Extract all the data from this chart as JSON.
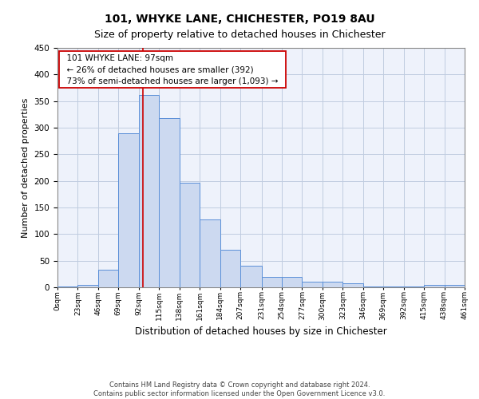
{
  "title": "101, WHYKE LANE, CHICHESTER, PO19 8AU",
  "subtitle": "Size of property relative to detached houses in Chichester",
  "xlabel": "Distribution of detached houses by size in Chichester",
  "ylabel": "Number of detached properties",
  "footer_line1": "Contains HM Land Registry data © Crown copyright and database right 2024.",
  "footer_line2": "Contains public sector information licensed under the Open Government Licence v3.0.",
  "annotation_line1": "101 WHYKE LANE: 97sqm",
  "annotation_line2": "← 26% of detached houses are smaller (392)",
  "annotation_line3": "73% of semi-detached houses are larger (1,093) →",
  "bar_values": [
    2,
    5,
    33,
    290,
    362,
    318,
    197,
    127,
    70,
    40,
    20,
    20,
    10,
    10,
    7,
    2,
    2,
    2,
    5,
    4
  ],
  "bin_edges": [
    0,
    23,
    46,
    69,
    92,
    115,
    138,
    161,
    184,
    207,
    231,
    254,
    277,
    300,
    323,
    346,
    369,
    392,
    415,
    438,
    461
  ],
  "tick_labels": [
    "0sqm",
    "23sqm",
    "46sqm",
    "69sqm",
    "92sqm",
    "115sqm",
    "138sqm",
    "161sqm",
    "184sqm",
    "207sqm",
    "231sqm",
    "254sqm",
    "277sqm",
    "300sqm",
    "323sqm",
    "346sqm",
    "369sqm",
    "392sqm",
    "415sqm",
    "438sqm",
    "461sqm"
  ],
  "property_sqm": 97,
  "bar_facecolor": "#ccd9f0",
  "bar_edgecolor": "#5a8fd8",
  "redline_color": "#cc0000",
  "annotation_box_edgecolor": "#cc0000",
  "grid_color": "#c0cce0",
  "bg_color": "#eef2fb",
  "ylim": [
    0,
    450
  ],
  "yticks": [
    0,
    50,
    100,
    150,
    200,
    250,
    300,
    350,
    400,
    450
  ],
  "title_fontsize": 10,
  "subtitle_fontsize": 9,
  "xlabel_fontsize": 8.5,
  "ylabel_fontsize": 8,
  "footer_fontsize": 6,
  "annotation_fontsize": 7.5
}
